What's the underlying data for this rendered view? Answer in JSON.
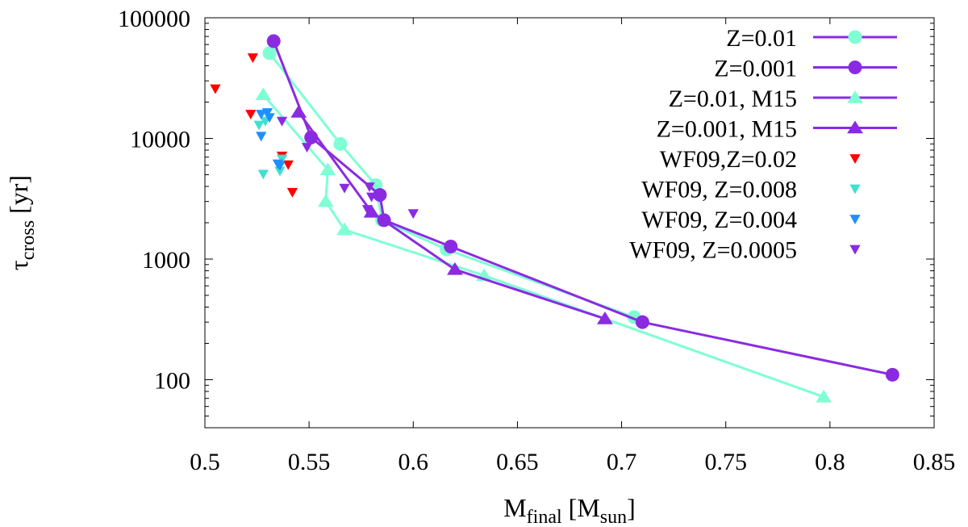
{
  "chart_data": {
    "type": "scatter",
    "xlabel": {
      "main": "M",
      "sub": "final",
      "post": " [M",
      "sub2": "sun",
      "end": "]"
    },
    "ylabel": {
      "main": "τ",
      "sub": "cross",
      "post": " [yr]"
    },
    "xlim": [
      0.5,
      0.85
    ],
    "ylim": [
      40,
      100000
    ],
    "yscale": "log",
    "x_ticks": [
      {
        "value": 0.5,
        "label": "0.5"
      },
      {
        "value": 0.55,
        "label": "0.55"
      },
      {
        "value": 0.6,
        "label": "0.6"
      },
      {
        "value": 0.65,
        "label": "0.65"
      },
      {
        "value": 0.7,
        "label": "0.7"
      },
      {
        "value": 0.75,
        "label": "0.75"
      },
      {
        "value": 0.8,
        "label": "0.8"
      },
      {
        "value": 0.85,
        "label": "0.85"
      }
    ],
    "y_ticks": [
      {
        "value": 100,
        "label": "100"
      },
      {
        "value": 1000,
        "label": "1000"
      },
      {
        "value": 10000,
        "label": "10000"
      },
      {
        "value": 100000,
        "label": "100000"
      }
    ],
    "legend_position": "top-right",
    "series": [
      {
        "name": "Z=0.01",
        "line_color": "#7fffd4",
        "marker_color": "#7fffd4",
        "legend_line_color": "#8a2be2",
        "marker": "circle",
        "line": true,
        "points": [
          [
            0.531,
            51000
          ],
          [
            0.565,
            9000
          ],
          [
            0.582,
            4100
          ],
          [
            0.585,
            2100
          ],
          [
            0.616,
            1200
          ],
          [
            0.706,
            330
          ]
        ]
      },
      {
        "name": "Z=0.001",
        "line_color": "#8a2be2",
        "marker_color": "#8a2be2",
        "legend_line_color": "#8a2be2",
        "marker": "circle",
        "line": true,
        "points": [
          [
            0.533,
            64000
          ],
          [
            0.551,
            10200
          ],
          [
            0.584,
            3400
          ],
          [
            0.586,
            2100
          ],
          [
            0.618,
            1270
          ],
          [
            0.71,
            300
          ],
          [
            0.83,
            110
          ]
        ]
      },
      {
        "name": "Z=0.01, M15",
        "line_color": "#7fffd4",
        "marker_color": "#7fffd4",
        "legend_line_color": "#8a2be2",
        "marker": "triangle-up",
        "line": true,
        "points": [
          [
            0.528,
            23000
          ],
          [
            0.559,
            5500
          ],
          [
            0.558,
            3000
          ],
          [
            0.567,
            1750
          ],
          [
            0.634,
            730
          ],
          [
            0.797,
            72
          ]
        ]
      },
      {
        "name": "Z=0.001, M15",
        "line_color": "#8a2be2",
        "marker_color": "#8a2be2",
        "legend_line_color": "#8a2be2",
        "marker": "triangle-up",
        "line": true,
        "points": [
          [
            0.545,
            16500
          ],
          [
            0.58,
            2450
          ],
          [
            0.62,
            820
          ],
          [
            0.692,
            320
          ]
        ]
      },
      {
        "name": "WF09,Z=0.02",
        "marker_color": "#ff0000",
        "marker": "triangle-down",
        "line": false,
        "points": [
          [
            0.505,
            26000
          ],
          [
            0.523,
            47000
          ],
          [
            0.522,
            16000
          ],
          [
            0.537,
            7200
          ],
          [
            0.54,
            6100
          ],
          [
            0.542,
            3600
          ]
        ]
      },
      {
        "name": "WF09, Z=0.008",
        "marker_color": "#40e0d0",
        "marker": "triangle-down",
        "line": false,
        "points": [
          [
            0.526,
            13000
          ],
          [
            0.529,
            14000
          ],
          [
            0.528,
            5100
          ],
          [
            0.536,
            5400
          ],
          [
            0.537,
            6800
          ]
        ]
      },
      {
        "name": "WF09, Z=0.004",
        "marker_color": "#1e90ff",
        "marker": "triangle-down",
        "line": false,
        "points": [
          [
            0.527,
            16000
          ],
          [
            0.53,
            16500
          ],
          [
            0.531,
            15000
          ],
          [
            0.527,
            10500
          ],
          [
            0.535,
            6200
          ],
          [
            0.536,
            6000
          ]
        ]
      },
      {
        "name": "WF09, Z=0.0005",
        "marker_color": "#8a2be2",
        "marker": "triangle-down",
        "line": false,
        "points": [
          [
            0.537,
            14000
          ],
          [
            0.549,
            8500
          ],
          [
            0.567,
            3900
          ],
          [
            0.579,
            4000
          ],
          [
            0.58,
            3300
          ],
          [
            0.6,
            2400
          ],
          [
            0.578,
            2600
          ]
        ]
      }
    ]
  }
}
